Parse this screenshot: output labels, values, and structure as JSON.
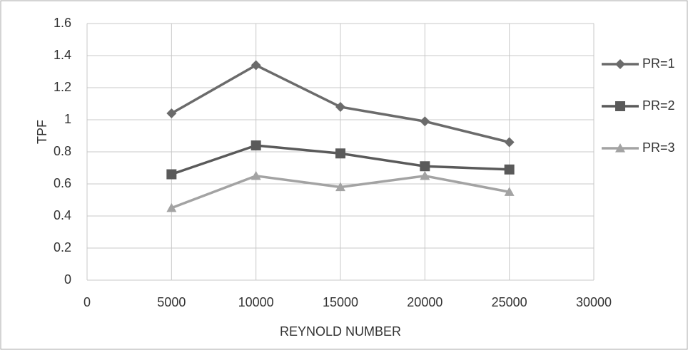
{
  "chart_data": {
    "type": "line",
    "x_label": "REYNOLD NUMBER",
    "y_label": "TPF",
    "x": [
      5000,
      10000,
      15000,
      20000,
      25000
    ],
    "series": [
      {
        "name": "PR=1",
        "color": "#6b6b6b",
        "marker": "diamond",
        "values": [
          1.04,
          1.34,
          1.08,
          0.99,
          0.86
        ]
      },
      {
        "name": "PR=2",
        "color": "#5a5a5a",
        "marker": "square",
        "values": [
          0.66,
          0.84,
          0.79,
          0.71,
          0.69
        ]
      },
      {
        "name": "PR=3",
        "color": "#a3a3a3",
        "marker": "triangle",
        "values": [
          0.45,
          0.65,
          0.58,
          0.65,
          0.55
        ]
      }
    ],
    "xlim": [
      0,
      30000
    ],
    "xticks": [
      0,
      5000,
      10000,
      15000,
      20000,
      25000,
      30000
    ],
    "ylim": [
      0,
      1.6
    ],
    "yticks": [
      0,
      0.2,
      0.4,
      0.6,
      0.8,
      1,
      1.2,
      1.4,
      1.6
    ],
    "grid": true,
    "legend": "right"
  }
}
